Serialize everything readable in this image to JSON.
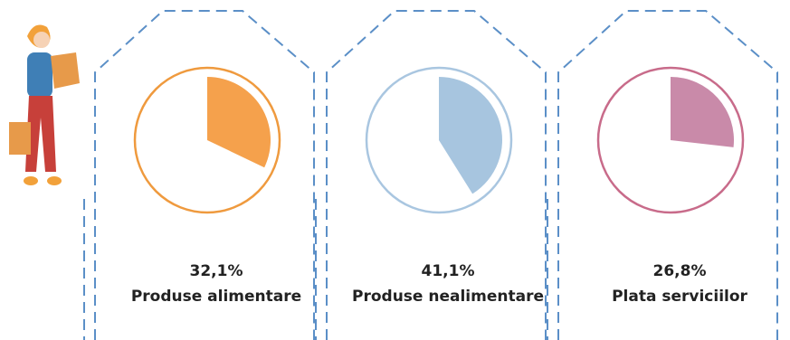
{
  "chart_data": {
    "type": "gauge",
    "categories": [
      "Produse alimentare",
      "Produse nealimentare",
      "Plata serviciilor"
    ],
    "values": [
      32.1,
      41.1,
      26.8
    ],
    "value_labels": [
      "32,1%",
      "41,1%",
      "26,8%"
    ],
    "colors": [
      "#f5a14c",
      "#a7c5df",
      "#c98aa9"
    ],
    "ring_colors": [
      "#ef9a3e",
      "#a9c6e0",
      "#c86b8a"
    ]
  }
}
